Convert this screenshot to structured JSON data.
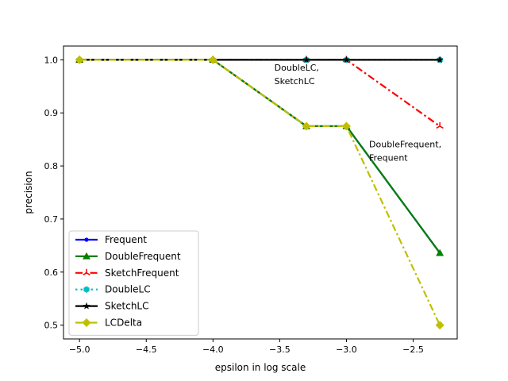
{
  "chart_data": {
    "type": "line",
    "title": "",
    "xlabel": "epsilon in log scale",
    "ylabel": "precision",
    "x": [
      -5.0,
      -4.0,
      -3.3,
      -3.0,
      -2.3
    ],
    "xlim": [
      -5.12,
      -2.17
    ],
    "ylim": [
      0.474,
      1.026
    ],
    "xticks": [
      -5.0,
      -4.5,
      -4.0,
      -3.5,
      -3.0,
      -2.5
    ],
    "xtick_labels": [
      "−5.0",
      "−4.5",
      "−4.0",
      "−3.5",
      "−3.0",
      "−2.5"
    ],
    "yticks": [
      0.5,
      0.6,
      0.7,
      0.8,
      0.9,
      1.0
    ],
    "ytick_labels": [
      "0.5",
      "0.6",
      "0.7",
      "0.8",
      "0.9",
      "1.0"
    ],
    "grid": false,
    "legend_position": "lower-left",
    "series": [
      {
        "name": "Frequent",
        "values": [
          1.0,
          1.0,
          0.875,
          0.875,
          0.636
        ],
        "color": "#0000ff",
        "dash": "solid",
        "marker": "dot"
      },
      {
        "name": "DoubleFrequent",
        "values": [
          1.0,
          1.0,
          0.875,
          0.875,
          0.636
        ],
        "color": "#008000",
        "dash": "solid",
        "marker": "triangle"
      },
      {
        "name": "SketchFrequent",
        "values": [
          1.0,
          1.0,
          1.0,
          1.0,
          0.875
        ],
        "color": "#ff0000",
        "dash": "dashdot",
        "marker": "tri"
      },
      {
        "name": "DoubleLC",
        "values": [
          1.0,
          1.0,
          1.0,
          1.0,
          1.0
        ],
        "color": "#00bfbf",
        "dash": "dotted",
        "marker": "hexagon"
      },
      {
        "name": "SketchLC",
        "values": [
          1.0,
          1.0,
          1.0,
          1.0,
          1.0
        ],
        "color": "#000000",
        "dash": "solid",
        "marker": "star"
      },
      {
        "name": "LCDelta",
        "values": [
          1.0,
          1.0,
          0.875,
          0.875,
          0.5
        ],
        "color": "#bfbf00",
        "dash": "dashdot",
        "marker": "diamond"
      }
    ],
    "annotations": [
      {
        "lines": [
          "DoubleLC,",
          "SketchLC"
        ],
        "x": -3.54,
        "y": 0.98
      },
      {
        "lines": [
          "DoubleFrequent,",
          "Frequent"
        ],
        "x": -2.83,
        "y": 0.835
      }
    ]
  }
}
